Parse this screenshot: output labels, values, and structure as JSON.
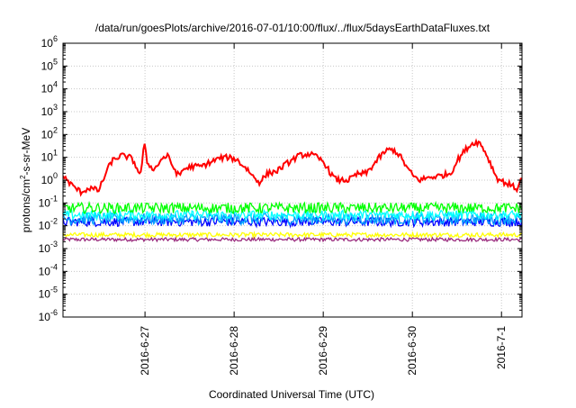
{
  "chart_data": {
    "type": "line",
    "title": "/data/run/goesPlots/archive/2016-07-01/10:00/flux/../flux/5daysEarthDataFluxes.txt",
    "xlabel": "Coordinated Universal Time (UTC)",
    "ylabel": "protons/cm²-s-sr-MeV",
    "ylabel_parts": {
      "prefix": "protons/cm",
      "sup": "2",
      "suffix": "-s-sr-MeV"
    },
    "y_scale": "log",
    "ylim_exponent": [
      -6,
      6
    ],
    "y_ticks": [
      {
        "base": "10",
        "exp": "-6"
      },
      {
        "base": "10",
        "exp": "-5"
      },
      {
        "base": "10",
        "exp": "-4"
      },
      {
        "base": "10",
        "exp": "-3"
      },
      {
        "base": "10",
        "exp": "-2"
      },
      {
        "base": "10",
        "exp": "-1"
      },
      {
        "base": "10",
        "exp": "0"
      },
      {
        "base": "10",
        "exp": "1"
      },
      {
        "base": "10",
        "exp": "2"
      },
      {
        "base": "10",
        "exp": "3"
      },
      {
        "base": "10",
        "exp": "4"
      },
      {
        "base": "10",
        "exp": "5"
      },
      {
        "base": "10",
        "exp": "6"
      }
    ],
    "xlim_days": [
      -0.35,
      4.8
    ],
    "x_ticks": [
      {
        "label": "2016-6-27",
        "day": 0.57
      },
      {
        "label": "2016-6-28",
        "day": 1.57
      },
      {
        "label": "2016-6-29",
        "day": 2.57
      },
      {
        "label": "2016-6-30",
        "day": 3.57
      },
      {
        "label": "2016-7-1",
        "day": 4.57
      }
    ],
    "grid": true,
    "legend": "none",
    "series": [
      {
        "color": "#ff0000",
        "points": [
          [
            -0.35,
            1.5
          ],
          [
            -0.25,
            0.6
          ],
          [
            -0.15,
            0.3
          ],
          [
            -0.05,
            0.45
          ],
          [
            0.05,
            0.35
          ],
          [
            0.1,
            1.0
          ],
          [
            0.15,
            3.0
          ],
          [
            0.2,
            7.0
          ],
          [
            0.3,
            12
          ],
          [
            0.4,
            10
          ],
          [
            0.45,
            6
          ],
          [
            0.52,
            1.5
          ],
          [
            0.56,
            40
          ],
          [
            0.6,
            5
          ],
          [
            0.68,
            3
          ],
          [
            0.75,
            8
          ],
          [
            0.82,
            12
          ],
          [
            0.9,
            3
          ],
          [
            0.95,
            1.5
          ],
          [
            1.0,
            3
          ],
          [
            1.1,
            4
          ],
          [
            1.2,
            4
          ],
          [
            1.3,
            6
          ],
          [
            1.4,
            9
          ],
          [
            1.5,
            10
          ],
          [
            1.6,
            8
          ],
          [
            1.65,
            5
          ],
          [
            1.72,
            3
          ],
          [
            1.78,
            1.5
          ],
          [
            1.85,
            0.8
          ],
          [
            1.95,
            2
          ],
          [
            2.05,
            2.5
          ],
          [
            2.15,
            5
          ],
          [
            2.3,
            12
          ],
          [
            2.42,
            14
          ],
          [
            2.5,
            10
          ],
          [
            2.58,
            6
          ],
          [
            2.65,
            2
          ],
          [
            2.72,
            1.0
          ],
          [
            2.85,
            1.0
          ],
          [
            2.95,
            1.8
          ],
          [
            3.05,
            2.0
          ],
          [
            3.12,
            4
          ],
          [
            3.2,
            10
          ],
          [
            3.28,
            20
          ],
          [
            3.35,
            22
          ],
          [
            3.43,
            12
          ],
          [
            3.5,
            4
          ],
          [
            3.58,
            1.5
          ],
          [
            3.65,
            1.0
          ],
          [
            3.75,
            1.3
          ],
          [
            3.9,
            1.6
          ],
          [
            4.0,
            2
          ],
          [
            4.08,
            8
          ],
          [
            4.18,
            25
          ],
          [
            4.26,
            45
          ],
          [
            4.32,
            45
          ],
          [
            4.38,
            20
          ],
          [
            4.45,
            5
          ],
          [
            4.52,
            1.2
          ],
          [
            4.6,
            0.8
          ],
          [
            4.68,
            0.6
          ],
          [
            4.74,
            0.4
          ],
          [
            4.78,
            0.8
          ],
          [
            4.8,
            1.5
          ]
        ]
      },
      {
        "color": "#00ff00",
        "center": 0.06,
        "variation": 1.7
      },
      {
        "color": "#00ffff",
        "center": 0.03,
        "variation": 1.6
      },
      {
        "color": "#00a0ff",
        "center": 0.02,
        "variation": 1.8
      },
      {
        "color": "#0000ff",
        "center": 0.015,
        "variation": 1.6
      },
      {
        "color": "#ffff00",
        "center": 0.004,
        "variation": 1.25
      },
      {
        "color": "#9b2d7f",
        "center": 0.0025,
        "variation": 1.2
      }
    ]
  }
}
